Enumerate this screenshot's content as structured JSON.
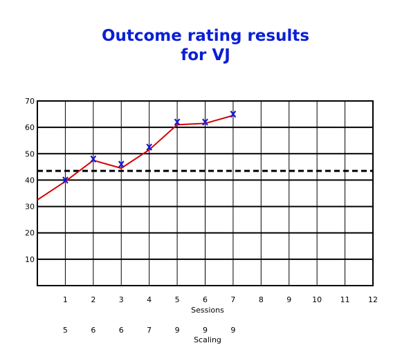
{
  "title": {
    "line1": "Outcome rating results",
    "line2": "for VJ"
  },
  "colors": {
    "title": "#0a1fd6",
    "line": "#d40000",
    "marker": "#1a1ad0",
    "grid": "#000000"
  },
  "chart_data": {
    "type": "line",
    "title": "Outcome rating results for VJ",
    "xlabel": "Sessions",
    "secondary_xlabel": "Scaling",
    "ylim": [
      0,
      70
    ],
    "xlim": [
      0,
      12
    ],
    "y_ticks": [
      10,
      20,
      30,
      40,
      50,
      60,
      70
    ],
    "x_ticks": [
      1,
      2,
      3,
      4,
      5,
      6,
      7,
      8,
      9,
      10,
      11,
      12
    ],
    "scaling": [
      "5",
      "6",
      "6",
      "7",
      "9",
      "9",
      "9"
    ],
    "reference_line": {
      "y": 43.5,
      "style": "dashed"
    },
    "series": [
      {
        "points": [
          [
            0,
            32.5
          ],
          [
            1,
            39.5
          ],
          [
            2,
            47.5
          ],
          [
            3,
            44.5
          ],
          [
            4,
            51.5
          ],
          [
            5,
            61
          ],
          [
            6,
            61.5
          ],
          [
            7,
            64.5
          ]
        ],
        "markers": [
          [
            1,
            40
          ],
          [
            2,
            48
          ],
          [
            3,
            46
          ],
          [
            4,
            52.5
          ],
          [
            5,
            62
          ],
          [
            6,
            62
          ],
          [
            7,
            65
          ]
        ]
      }
    ],
    "grid": true,
    "legend": "none"
  }
}
